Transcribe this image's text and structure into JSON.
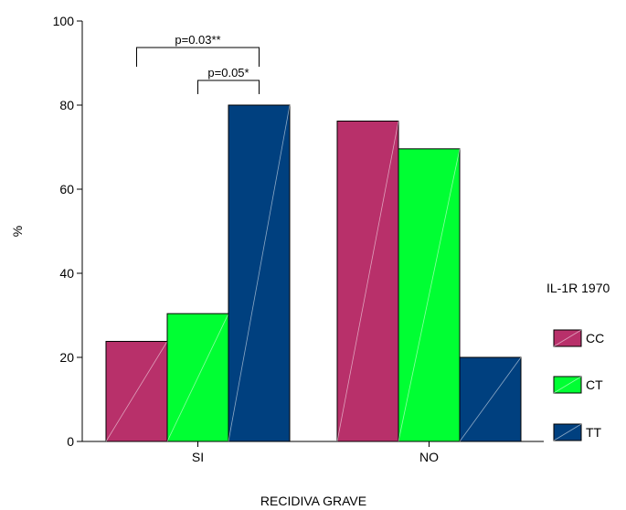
{
  "chart_data": {
    "type": "bar",
    "xlabel": "RECIDIVA GRAVE",
    "ylabel": "%",
    "ylim": [
      0,
      100
    ],
    "yticks": [
      0,
      20,
      40,
      60,
      80,
      100
    ],
    "categories": [
      "SI",
      "NO"
    ],
    "legend_title": "IL-1R 1970",
    "legend_position": "right",
    "series": [
      {
        "name": "CC",
        "color": "#B8306A",
        "values": [
          23.8,
          76.2
        ]
      },
      {
        "name": "CT",
        "color": "#00FF33",
        "values": [
          30.4,
          69.6
        ]
      },
      {
        "name": "TT",
        "color": "#00407F",
        "values": [
          80.0,
          20.0
        ]
      }
    ],
    "annotations": [
      {
        "text": "p=0.03**",
        "category": "SI",
        "from_series": "CC",
        "to_series": "TT"
      },
      {
        "text": "p=0.05*",
        "category": "SI",
        "from_series": "CT",
        "to_series": "TT"
      }
    ],
    "grid": false
  }
}
